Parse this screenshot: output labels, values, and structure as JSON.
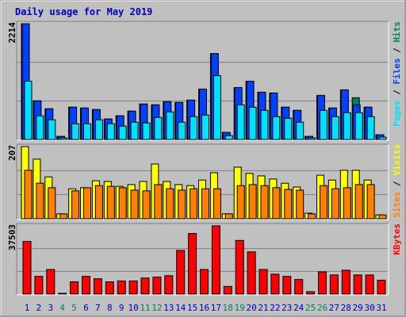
{
  "chart_data": {
    "type": "bar",
    "title": "Daily usage for May 2019",
    "categories": [
      "1",
      "2",
      "3",
      "4",
      "5",
      "6",
      "7",
      "8",
      "9",
      "10",
      "11",
      "12",
      "13",
      "14",
      "15",
      "16",
      "17",
      "18",
      "19",
      "20",
      "21",
      "22",
      "23",
      "24",
      "25",
      "26",
      "27",
      "28",
      "29",
      "30",
      "31"
    ],
    "category_colors": [
      "#0000c0",
      "#0000c0",
      "#0000c0",
      "#008060",
      "#008060",
      "#0000c0",
      "#0000c0",
      "#0000c0",
      "#0000c0",
      "#0000c0",
      "#008060",
      "#008060",
      "#0000c0",
      "#0000c0",
      "#0000c0",
      "#0000c0",
      "#0000c0",
      "#008060",
      "#008060",
      "#0000c0",
      "#0000c0",
      "#0000c0",
      "#0000c0",
      "#0000c0",
      "#008060",
      "#008060",
      "#0000c0",
      "#0000c0",
      "#0000c0",
      "#0000c0",
      "#0000c0"
    ],
    "legend_separator": " / ",
    "panels": [
      {
        "ylim": [
          0,
          2214
        ],
        "yticks": [
          2214
        ],
        "series": [
          {
            "name": "Hits",
            "color": "#00805c",
            "values": [
              2214,
              738,
              587,
              60,
              618,
              602,
              572,
              392,
              452,
              542,
              678,
              663,
              723,
              708,
              753,
              964,
              1642,
              136,
              994,
              1115,
              904,
              889,
              618,
              557,
              60,
              843,
              602,
              949,
              798,
              618,
              90
            ]
          },
          {
            "name": "Files",
            "color": "#0040ff",
            "values": [
              2214,
              738,
              587,
              60,
              618,
              602,
              572,
              392,
              452,
              542,
              678,
              663,
              723,
              708,
              753,
              964,
              1642,
              136,
              994,
              1115,
              904,
              889,
              618,
              557,
              60,
              843,
              602,
              949,
              663,
              618,
              90
            ]
          },
          {
            "name": "Pages",
            "color": "#00e0ff",
            "values": [
              1115,
              452,
              377,
              30,
              301,
              301,
              377,
              301,
              256,
              331,
              316,
              422,
              527,
              331,
              437,
              467,
              1220,
              75,
              663,
              618,
              557,
              437,
              407,
              331,
              30,
              557,
              437,
              512,
              512,
              437,
              45
            ]
          }
        ]
      },
      {
        "ylim": [
          0,
          207
        ],
        "yticks": [
          207
        ],
        "series": [
          {
            "name": "Visits",
            "color": "#ffff00",
            "values": [
              207,
              171,
              120,
              14,
              86,
              89,
              109,
              107,
              93,
              98,
              107,
              157,
              107,
              98,
              95,
              111,
              132,
              14,
              148,
              130,
              123,
              114,
              102,
              91,
              16,
              125,
              111,
              139,
              139,
              111,
              11
            ]
          },
          {
            "name": "Sites",
            "color": "#ff8000",
            "values": [
              139,
              102,
              89,
              14,
              80,
              89,
              95,
              93,
              89,
              82,
              80,
              98,
              86,
              82,
              86,
              86,
              86,
              14,
              95,
              98,
              95,
              89,
              84,
              82,
              14,
              95,
              86,
              89,
              98,
              98,
              11
            ]
          }
        ]
      },
      {
        "ylim": [
          0,
          37503
        ],
        "yticks": [
          37503
        ],
        "series": [
          {
            "name": "KBytes",
            "color": "#ff0000",
            "values": [
              29000,
              9700,
              13500,
              400,
              6700,
              9700,
              8400,
              6700,
              7200,
              7200,
              8800,
              9300,
              10100,
              24000,
              33300,
              13500,
              37503,
              4200,
              29500,
              23200,
              13500,
              10900,
              9700,
              8000,
              1300,
              12200,
              10500,
              13100,
              10500,
              10500,
              7600
            ]
          }
        ]
      }
    ]
  }
}
